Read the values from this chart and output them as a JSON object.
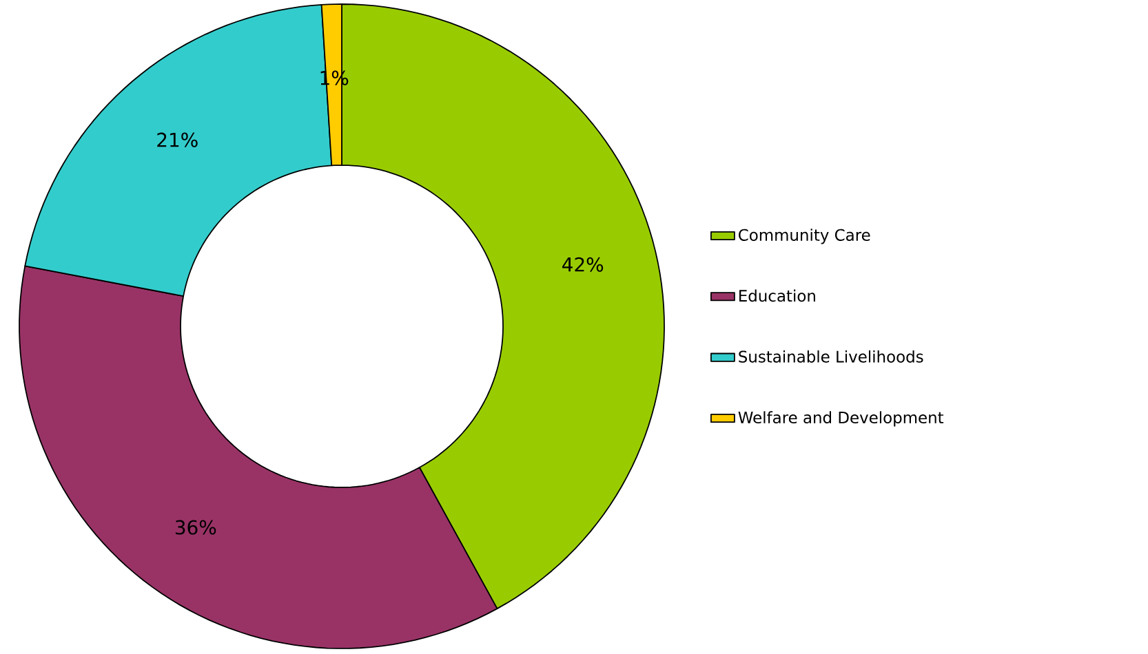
{
  "chart_data": {
    "type": "donut",
    "categories": [
      "Community Care",
      "Education",
      "Sustainable Livelihoods",
      "Welfare and Development"
    ],
    "values": [
      42,
      36,
      21,
      1
    ],
    "colors": [
      "#99cc00",
      "#993366",
      "#33cccc",
      "#ffcc00"
    ],
    "value_labels": [
      "42%",
      "36%",
      "21%",
      "1%"
    ],
    "legend": "right"
  }
}
